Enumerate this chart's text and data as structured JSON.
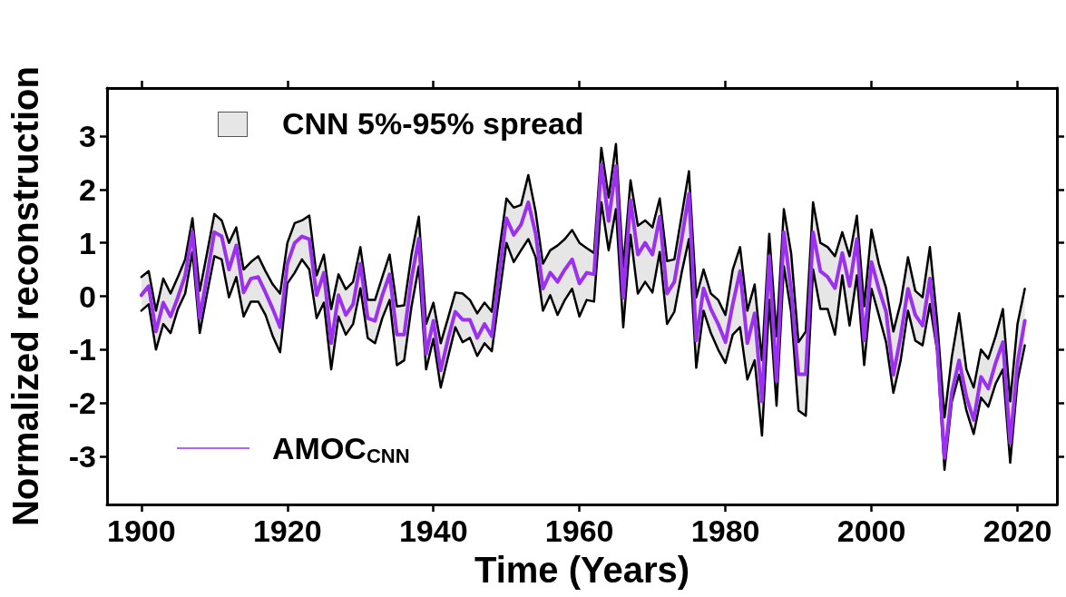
{
  "chart_data": {
    "type": "line",
    "xlabel": "Time (Years)",
    "ylabel": "Normalized reconstruction",
    "x": [
      1900,
      1901,
      1902,
      1903,
      1904,
      1905,
      1906,
      1907,
      1908,
      1909,
      1910,
      1911,
      1912,
      1913,
      1914,
      1915,
      1916,
      1917,
      1918,
      1919,
      1920,
      1921,
      1922,
      1923,
      1924,
      1925,
      1926,
      1927,
      1928,
      1929,
      1930,
      1931,
      1932,
      1933,
      1934,
      1935,
      1936,
      1937,
      1938,
      1939,
      1940,
      1941,
      1942,
      1943,
      1944,
      1945,
      1946,
      1947,
      1948,
      1949,
      1950,
      1951,
      1952,
      1953,
      1954,
      1955,
      1956,
      1957,
      1958,
      1959,
      1960,
      1961,
      1962,
      1963,
      1964,
      1965,
      1966,
      1967,
      1968,
      1969,
      1970,
      1971,
      1972,
      1973,
      1974,
      1975,
      1976,
      1977,
      1978,
      1979,
      1980,
      1981,
      1982,
      1983,
      1984,
      1985,
      1986,
      1987,
      1988,
      1989,
      1990,
      1991,
      1992,
      1993,
      1994,
      1995,
      1996,
      1997,
      1998,
      1999,
      2000,
      2001,
      2002,
      2003,
      2004,
      2005,
      2006,
      2007,
      2008,
      2009,
      2010,
      2011,
      2012,
      2013,
      2014,
      2015,
      2016,
      2017,
      2018,
      2019,
      2020,
      2021
    ],
    "series": [
      {
        "color": "#000000",
        "values": [
          0.36,
          0.47,
          -0.27,
          0.33,
          0.05,
          0.36,
          0.69,
          1.46,
          0.1,
          0.81,
          1.54,
          1.42,
          1.0,
          1.29,
          0.5,
          0.64,
          0.75,
          0.47,
          0.22,
          0.05,
          1.0,
          1.37,
          1.42,
          1.51,
          0.39,
          0.78,
          -0.24,
          0.41,
          0.13,
          0.27,
          0.92,
          -0.07,
          -0.07,
          0.36,
          0.78,
          -0.19,
          -0.17,
          0.78,
          1.49,
          -0.52,
          -0.12,
          -0.88,
          -0.41,
          0.07,
          0.05,
          -0.07,
          -0.32,
          -0.12,
          -0.29,
          0.83,
          1.83,
          1.66,
          1.71,
          2.27,
          1.58,
          0.61,
          0.86,
          0.95,
          1.07,
          1.24,
          1.0,
          0.9,
          0.81,
          2.78,
          1.85,
          2.85,
          0.53,
          2.17,
          1.32,
          1.42,
          1.29,
          1.83,
          0.66,
          0.69,
          1.51,
          2.34,
          -0.02,
          0.5,
          0.05,
          -0.07,
          -0.35,
          0.5,
          0.92,
          -0.27,
          0.22,
          -1.2,
          1.17,
          -0.75,
          1.63,
          0.8,
          -0.86,
          -0.66,
          1.76,
          1.0,
          0.92,
          0.75,
          1.2,
          0.75,
          1.51,
          -0.19,
          1.25,
          0.61,
          0.15,
          -0.66,
          -0.12,
          0.73,
          0.1,
          -0.02,
          0.92,
          -0.46,
          -2.27,
          -1.14,
          -0.32,
          -1.37,
          -1.71,
          -1.0,
          -1.17,
          -0.75,
          -0.24,
          -1.97,
          -0.52,
          0.14
        ]
      },
      {
        "color": "#000000",
        "values": [
          -0.27,
          -0.15,
          -1.0,
          -0.52,
          -0.69,
          -0.24,
          0.05,
          0.83,
          -0.69,
          0.05,
          0.75,
          0.69,
          -0.02,
          0.36,
          -0.38,
          -0.1,
          -0.1,
          -0.35,
          -0.75,
          -1.05,
          0.24,
          0.44,
          0.69,
          0.5,
          -0.41,
          -0.12,
          -1.37,
          -0.38,
          -0.72,
          -0.52,
          0.15,
          -0.78,
          -0.88,
          -0.41,
          -0.07,
          -1.29,
          -1.2,
          -0.19,
          0.56,
          -1.37,
          -0.8,
          -1.71,
          -1.14,
          -0.58,
          -0.86,
          -0.78,
          -1.12,
          -0.88,
          -1.03,
          -0.02,
          1.0,
          0.64,
          0.86,
          1.07,
          0.73,
          -0.27,
          0.02,
          -0.35,
          -0.07,
          0.14,
          -0.38,
          -0.07,
          -0.1,
          1.76,
          0.86,
          1.63,
          -0.58,
          1.15,
          0.05,
          0.27,
          0.07,
          0.83,
          -0.52,
          -0.29,
          0.44,
          1.07,
          -1.34,
          -0.27,
          -0.69,
          -1.0,
          -1.25,
          -0.72,
          -0.58,
          -1.56,
          -1.2,
          -2.61,
          -0.07,
          -2.05,
          0.56,
          -0.3,
          -2.14,
          -2.24,
          0.5,
          -0.24,
          -0.24,
          -0.72,
          0.39,
          -0.55,
          0.39,
          -1.29,
          0.14,
          -0.35,
          -0.86,
          -1.81,
          -1.2,
          -0.27,
          -0.83,
          -0.92,
          -0.15,
          -1.03,
          -3.25,
          -1.98,
          -1.47,
          -2.14,
          -2.58,
          -1.9,
          -2.07,
          -1.64,
          -1.37,
          -3.12,
          -1.59,
          -0.92
        ]
      },
      {
        "name": "AMOC$_{CNN}$",
        "type": "line",
        "color": "#9b30f0",
        "upper": [
          0.36,
          0.47,
          -0.27,
          0.33,
          0.05,
          0.36,
          0.69,
          1.46,
          0.1,
          0.81,
          1.54,
          1.42,
          1.0,
          1.29,
          0.5,
          0.64,
          0.75,
          0.47,
          0.22,
          0.05,
          1.0,
          1.37,
          1.42,
          1.51,
          0.39,
          0.78,
          -0.24,
          0.41,
          0.13,
          0.27,
          0.92,
          -0.07,
          -0.07,
          0.36,
          0.78,
          -0.19,
          -0.17,
          0.78,
          1.49,
          -0.52,
          -0.12,
          -0.88,
          -0.41,
          0.07,
          0.05,
          -0.07,
          -0.32,
          -0.12,
          -0.29,
          0.83,
          1.83,
          1.66,
          1.71,
          2.27,
          1.58,
          0.61,
          0.86,
          0.95,
          1.07,
          1.24,
          1.0,
          0.9,
          0.81,
          2.78,
          1.85,
          2.85,
          0.53,
          2.17,
          1.32,
          1.42,
          1.29,
          1.83,
          0.66,
          0.69,
          1.51,
          2.34,
          -0.02,
          0.5,
          0.05,
          -0.07,
          -0.35,
          0.5,
          0.92,
          -0.27,
          0.22,
          -1.2,
          1.17,
          -0.75,
          1.63,
          0.8,
          -0.86,
          -0.66,
          1.76,
          1.0,
          0.92,
          0.75,
          1.2,
          0.75,
          1.51,
          -0.19,
          1.25,
          0.61,
          0.15,
          -0.66,
          -0.12,
          0.73,
          0.1,
          -0.02,
          0.92,
          -0.46,
          -2.27,
          -1.14,
          -0.32,
          -1.37,
          -1.71,
          -1.0,
          -1.17,
          -0.75,
          -0.24,
          -1.97,
          -0.52,
          0.14
        ],
        "lower": [
          -0.27,
          -0.15,
          -1.0,
          -0.52,
          -0.69,
          -0.24,
          0.05,
          0.83,
          -0.69,
          0.05,
          0.75,
          0.69,
          -0.02,
          0.36,
          -0.38,
          -0.1,
          -0.1,
          -0.35,
          -0.75,
          -1.05,
          0.24,
          0.44,
          0.69,
          0.5,
          -0.41,
          -0.12,
          -1.37,
          -0.38,
          -0.72,
          -0.52,
          0.15,
          -0.78,
          -0.88,
          -0.41,
          -0.07,
          -1.29,
          -1.2,
          -0.19,
          0.56,
          -1.37,
          -0.8,
          -1.71,
          -1.14,
          -0.58,
          -0.86,
          -0.78,
          -1.12,
          -0.88,
          -1.03,
          -0.02,
          1.0,
          0.64,
          0.86,
          1.07,
          0.73,
          -0.27,
          0.02,
          -0.35,
          -0.07,
          0.14,
          -0.38,
          -0.07,
          -0.1,
          1.76,
          0.86,
          1.63,
          -0.58,
          1.15,
          0.05,
          0.27,
          0.07,
          0.83,
          -0.52,
          -0.29,
          0.44,
          1.07,
          -1.34,
          -0.27,
          -0.69,
          -1.0,
          -1.25,
          -0.72,
          -0.58,
          -1.56,
          -1.2,
          -2.61,
          -0.07,
          -2.05,
          0.56,
          -0.3,
          -2.14,
          -2.24,
          0.5,
          -0.24,
          -0.24,
          -0.72,
          0.39,
          -0.55,
          0.39,
          -1.29,
          0.14,
          -0.35,
          -0.86,
          -1.81,
          -1.2,
          -0.27,
          -0.83,
          -0.92,
          -0.15,
          -1.03,
          -3.25,
          -1.98,
          -1.47,
          -2.14,
          -2.58,
          -1.9,
          -2.07,
          -1.64,
          -1.37,
          -3.12,
          -1.59,
          -0.92
        ],
        "values": [
          0.02,
          0.19,
          -0.66,
          -0.12,
          -0.38,
          -0.02,
          0.39,
          1.2,
          -0.41,
          0.39,
          1.2,
          1.12,
          0.5,
          0.95,
          0.07,
          0.33,
          0.36,
          0.07,
          -0.24,
          -0.58,
          0.61,
          1.0,
          1.12,
          1.07,
          0.02,
          0.44,
          -0.88,
          0.02,
          -0.35,
          -0.15,
          0.61,
          -0.41,
          -0.46,
          0.02,
          0.41,
          -0.72,
          -0.72,
          0.33,
          1.08,
          -1.08,
          -0.46,
          -1.39,
          -0.8,
          -0.29,
          -0.44,
          -0.44,
          -0.78,
          -0.52,
          -0.75,
          0.41,
          1.46,
          1.15,
          1.34,
          1.76,
          1.17,
          0.14,
          0.44,
          0.27,
          0.5,
          0.69,
          0.24,
          0.44,
          0.41,
          2.47,
          1.41,
          2.44,
          -0.03,
          1.8,
          0.78,
          1.0,
          0.78,
          1.49,
          0.05,
          0.27,
          1.07,
          1.92,
          -0.83,
          0.15,
          -0.24,
          -0.52,
          -0.86,
          -0.15,
          0.47,
          -0.88,
          -0.32,
          -1.97,
          0.75,
          -1.59,
          1.2,
          0.1,
          -1.46,
          -1.46,
          1.2,
          0.47,
          0.36,
          0.15,
          0.81,
          0.19,
          1.07,
          -0.83,
          0.64,
          0.14,
          -0.29,
          -1.47,
          -0.75,
          0.14,
          -0.35,
          -0.55,
          0.33,
          -0.92,
          -3.03,
          -1.81,
          -1.2,
          -1.88,
          -2.32,
          -1.51,
          -1.73,
          -1.25,
          -0.86,
          -2.75,
          -1.25,
          -0.46
        ]
      }
    ],
    "xlim": [
      1895.3,
      2025.4
    ],
    "xticks": [
      1900,
      1920,
      1940,
      1960,
      1980,
      2000,
      2020
    ],
    "ylim": [
      -3.9,
      3.9
    ],
    "yticks": [
      -3,
      -2,
      -1,
      0,
      1,
      2,
      3
    ],
    "annotations": [
      "CNN 5%-95% spread"
    ],
    "grid": false,
    "legend": "left",
    "marker": "none",
    "line_style": "solid"
  }
}
